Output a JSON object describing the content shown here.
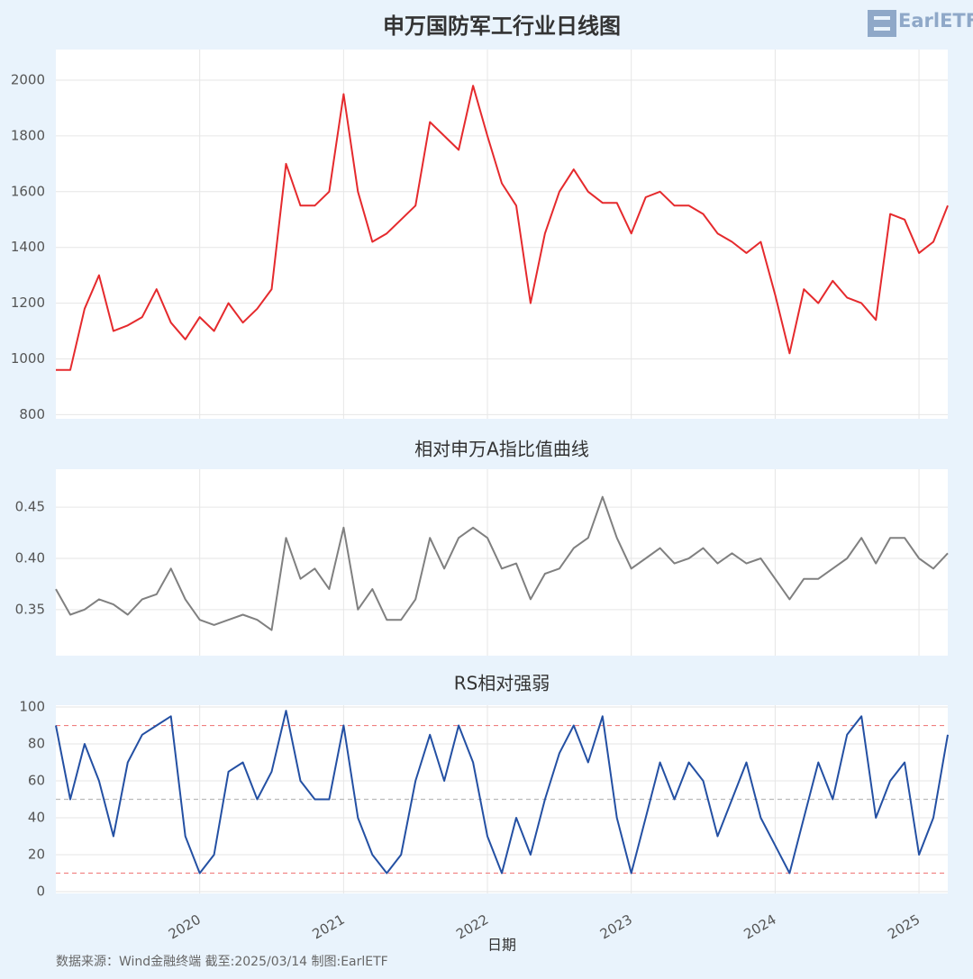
{
  "logo": "EarlETF",
  "source": "数据来源：Wind金融终端 截至:2025/03/14 制图:EarlETF",
  "chart_data": [
    {
      "type": "line",
      "title": "申万国防军工行业日线图",
      "color": "#e52a2d",
      "x": [
        2019.0,
        2019.1,
        2019.2,
        2019.3,
        2019.4,
        2019.5,
        2019.6,
        2019.7,
        2019.8,
        2019.9,
        2020.0,
        2020.1,
        2020.2,
        2020.3,
        2020.4,
        2020.5,
        2020.6,
        2020.7,
        2020.8,
        2020.9,
        2021.0,
        2021.1,
        2021.2,
        2021.3,
        2021.4,
        2021.5,
        2021.6,
        2021.7,
        2021.8,
        2021.9,
        2022.0,
        2022.1,
        2022.2,
        2022.3,
        2022.4,
        2022.5,
        2022.6,
        2022.7,
        2022.8,
        2022.9,
        2023.0,
        2023.1,
        2023.2,
        2023.3,
        2023.4,
        2023.5,
        2023.6,
        2023.7,
        2023.8,
        2023.9,
        2024.0,
        2024.1,
        2024.2,
        2024.3,
        2024.4,
        2024.5,
        2024.6,
        2024.7,
        2024.8,
        2024.9,
        2025.0,
        2025.1,
        2025.2
      ],
      "values": [
        960,
        960,
        1180,
        1300,
        1100,
        1120,
        1150,
        1250,
        1130,
        1070,
        1150,
        1100,
        1200,
        1130,
        1180,
        1250,
        1700,
        1550,
        1550,
        1600,
        1950,
        1600,
        1420,
        1450,
        1500,
        1550,
        1850,
        1800,
        1750,
        1980,
        1800,
        1630,
        1550,
        1200,
        1450,
        1600,
        1680,
        1600,
        1560,
        1560,
        1450,
        1580,
        1600,
        1550,
        1550,
        1520,
        1450,
        1420,
        1380,
        1420,
        1230,
        1020,
        1250,
        1200,
        1280,
        1220,
        1200,
        1140,
        1520,
        1500,
        1380,
        1420,
        1550
      ],
      "xlim": [
        2019.0,
        2025.2
      ],
      "xticks": [
        2020,
        2021,
        2022,
        2023,
        2024,
        2025
      ],
      "xtick_labels": false,
      "ylim": [
        785,
        2110
      ],
      "yticks": [
        800,
        1000,
        1200,
        1400,
        1600,
        1800,
        2000
      ],
      "grid": true
    },
    {
      "type": "line",
      "title": "相对申万A指比值曲线",
      "color": "#808080",
      "x": [
        2019.0,
        2019.1,
        2019.2,
        2019.3,
        2019.4,
        2019.5,
        2019.6,
        2019.7,
        2019.8,
        2019.9,
        2020.0,
        2020.1,
        2020.2,
        2020.3,
        2020.4,
        2020.5,
        2020.6,
        2020.7,
        2020.8,
        2020.9,
        2021.0,
        2021.1,
        2021.2,
        2021.3,
        2021.4,
        2021.5,
        2021.6,
        2021.7,
        2021.8,
        2021.9,
        2022.0,
        2022.1,
        2022.2,
        2022.3,
        2022.4,
        2022.5,
        2022.6,
        2022.7,
        2022.8,
        2022.9,
        2023.0,
        2023.1,
        2023.2,
        2023.3,
        2023.4,
        2023.5,
        2023.6,
        2023.7,
        2023.8,
        2023.9,
        2024.0,
        2024.1,
        2024.2,
        2024.3,
        2024.4,
        2024.5,
        2024.6,
        2024.7,
        2024.8,
        2024.9,
        2025.0,
        2025.1,
        2025.2
      ],
      "values": [
        0.37,
        0.345,
        0.35,
        0.36,
        0.355,
        0.345,
        0.36,
        0.365,
        0.39,
        0.36,
        0.34,
        0.335,
        0.34,
        0.345,
        0.34,
        0.33,
        0.42,
        0.38,
        0.39,
        0.37,
        0.43,
        0.35,
        0.37,
        0.34,
        0.34,
        0.36,
        0.42,
        0.39,
        0.42,
        0.43,
        0.42,
        0.39,
        0.395,
        0.36,
        0.385,
        0.39,
        0.41,
        0.42,
        0.46,
        0.42,
        0.39,
        0.4,
        0.41,
        0.395,
        0.4,
        0.41,
        0.395,
        0.405,
        0.395,
        0.4,
        0.38,
        0.36,
        0.38,
        0.38,
        0.39,
        0.4,
        0.42,
        0.395,
        0.42,
        0.42,
        0.4,
        0.39,
        0.405
      ],
      "xlim": [
        2019.0,
        2025.2
      ],
      "xticks": [
        2020,
        2021,
        2022,
        2023,
        2024,
        2025
      ],
      "xtick_labels": false,
      "ylim": [
        0.305,
        0.487
      ],
      "yticks": [
        {
          "value": 0.35,
          "label": "0.35"
        },
        {
          "value": 0.4,
          "label": "0.40"
        },
        {
          "value": 0.45,
          "label": "0.45"
        }
      ],
      "grid": true
    },
    {
      "type": "line",
      "title": "RS相对强弱",
      "x_label": "日期",
      "color": "#2450a3",
      "x": [
        2019.0,
        2019.1,
        2019.2,
        2019.3,
        2019.4,
        2019.5,
        2019.6,
        2019.7,
        2019.8,
        2019.9,
        2020.0,
        2020.1,
        2020.2,
        2020.3,
        2020.4,
        2020.5,
        2020.6,
        2020.7,
        2020.8,
        2020.9,
        2021.0,
        2021.1,
        2021.2,
        2021.3,
        2021.4,
        2021.5,
        2021.6,
        2021.7,
        2021.8,
        2021.9,
        2022.0,
        2022.1,
        2022.2,
        2022.3,
        2022.4,
        2022.5,
        2022.6,
        2022.7,
        2022.8,
        2022.9,
        2023.0,
        2023.1,
        2023.2,
        2023.3,
        2023.4,
        2023.5,
        2023.6,
        2023.7,
        2023.8,
        2023.9,
        2024.0,
        2024.1,
        2024.2,
        2024.3,
        2024.4,
        2024.5,
        2024.6,
        2024.7,
        2024.8,
        2024.9,
        2025.0,
        2025.1,
        2025.2
      ],
      "values": [
        90,
        50,
        80,
        60,
        30,
        70,
        85,
        90,
        95,
        30,
        10,
        20,
        65,
        70,
        50,
        65,
        98,
        60,
        50,
        50,
        90,
        40,
        20,
        10,
        20,
        60,
        85,
        60,
        90,
        70,
        30,
        10,
        40,
        20,
        50,
        75,
        90,
        70,
        95,
        40,
        10,
        40,
        70,
        50,
        70,
        60,
        30,
        50,
        70,
        40,
        25,
        10,
        40,
        70,
        50,
        85,
        95,
        40,
        60,
        70,
        20,
        40,
        85
      ],
      "xlim": [
        2019.0,
        2025.2
      ],
      "xticks": [
        2020,
        2021,
        2022,
        2023,
        2024,
        2025
      ],
      "xtick_labels": true,
      "ylim": [
        -1,
        101
      ],
      "yticks": [
        0,
        20,
        40,
        60,
        80,
        100
      ],
      "grid": true,
      "reference_lines": [
        {
          "value": 90,
          "color": "#f08080"
        },
        {
          "value": 50,
          "color": "#bbbbbb"
        },
        {
          "value": 10,
          "color": "#f08080"
        }
      ]
    }
  ]
}
